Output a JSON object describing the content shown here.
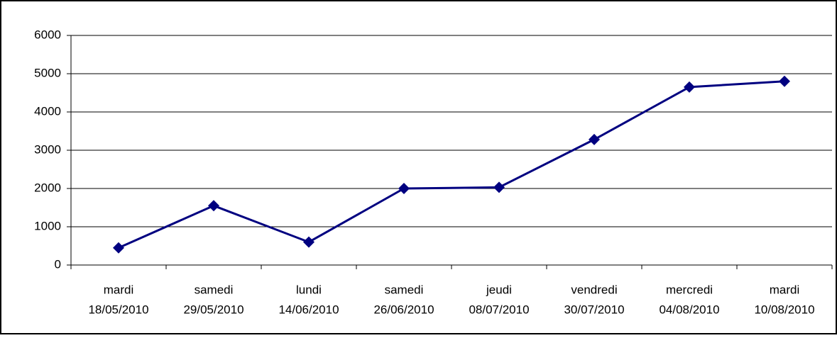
{
  "chart_data": {
    "type": "line",
    "categories": [
      [
        "mardi",
        "18/05/2010"
      ],
      [
        "samedi",
        "29/05/2010"
      ],
      [
        "lundi",
        "14/06/2010"
      ],
      [
        "samedi",
        "26/06/2010"
      ],
      [
        "jeudi",
        "08/07/2010"
      ],
      [
        "vendredi",
        "30/07/2010"
      ],
      [
        "mercredi",
        "04/08/2010"
      ],
      [
        "mardi",
        "10/08/2010"
      ]
    ],
    "values": [
      450,
      1550,
      600,
      2000,
      2030,
      3280,
      4650,
      4800
    ],
    "color": "#000080",
    "ylim": [
      0,
      6000
    ],
    "yticks": [
      0,
      1000,
      2000,
      3000,
      4000,
      5000,
      6000
    ],
    "grid": true
  }
}
